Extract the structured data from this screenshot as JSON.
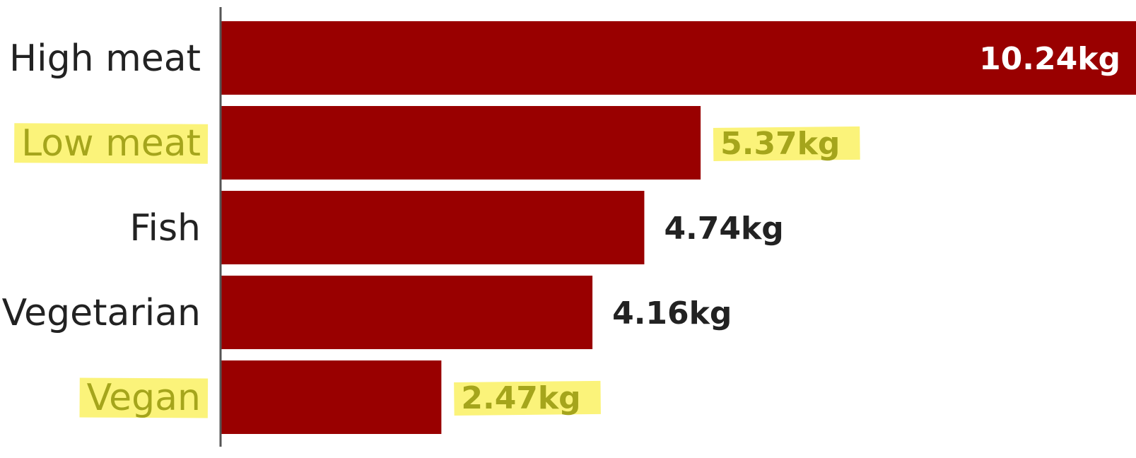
{
  "colors": {
    "bar": "#990000",
    "label_text": "#222222",
    "highlight": "#fbf26c",
    "highlighted_text": "#a5a51c",
    "inside_value_text": "#ffffff",
    "axis": "#555555"
  },
  "chart_data": {
    "type": "bar",
    "orientation": "horizontal",
    "title": "",
    "xlabel": "",
    "ylabel": "",
    "unit": "kg",
    "xlim": [
      0,
      10.24
    ],
    "grid": false,
    "legend": "none",
    "categories": [
      "High meat",
      "Low meat",
      "Fish",
      "Vegetarian",
      "Vegan"
    ],
    "values": [
      10.24,
      5.37,
      4.74,
      4.16,
      2.47
    ],
    "value_labels": [
      "10.24kg",
      "5.37kg",
      "4.74kg",
      "4.16kg",
      "2.47kg"
    ],
    "highlighted": [
      false,
      true,
      false,
      false,
      true
    ]
  }
}
